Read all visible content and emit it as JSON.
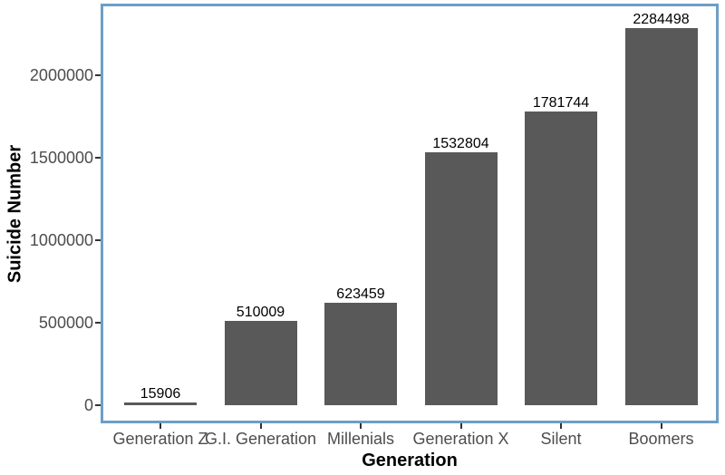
{
  "chart_data": {
    "type": "bar",
    "title": "",
    "xlabel": "Generation",
    "ylabel": "Suicide Number",
    "categories": [
      "Generation Z",
      "G.I. Generation",
      "Millenials",
      "Generation X",
      "Silent",
      "Boomers"
    ],
    "values": [
      15906,
      510009,
      623459,
      1532804,
      1781744,
      2284498
    ],
    "value_labels": [
      "15906",
      "510009",
      "623459",
      "1532804",
      "1781744",
      "2284498"
    ],
    "y_ticks": [
      0,
      500000,
      1000000,
      1500000,
      2000000
    ],
    "y_tick_labels": [
      "0",
      "500000",
      "1000000",
      "1500000",
      "2000000"
    ],
    "ylim": [
      0,
      2420000
    ],
    "grid": "off",
    "legend": "none",
    "colors": {
      "bar_fill": "#595959",
      "panel_border": "#6d9ec6",
      "axis_text": "#4d4d4d",
      "tick_mark": "#333333",
      "value_label": "#000000",
      "background": "#ffffff"
    }
  }
}
